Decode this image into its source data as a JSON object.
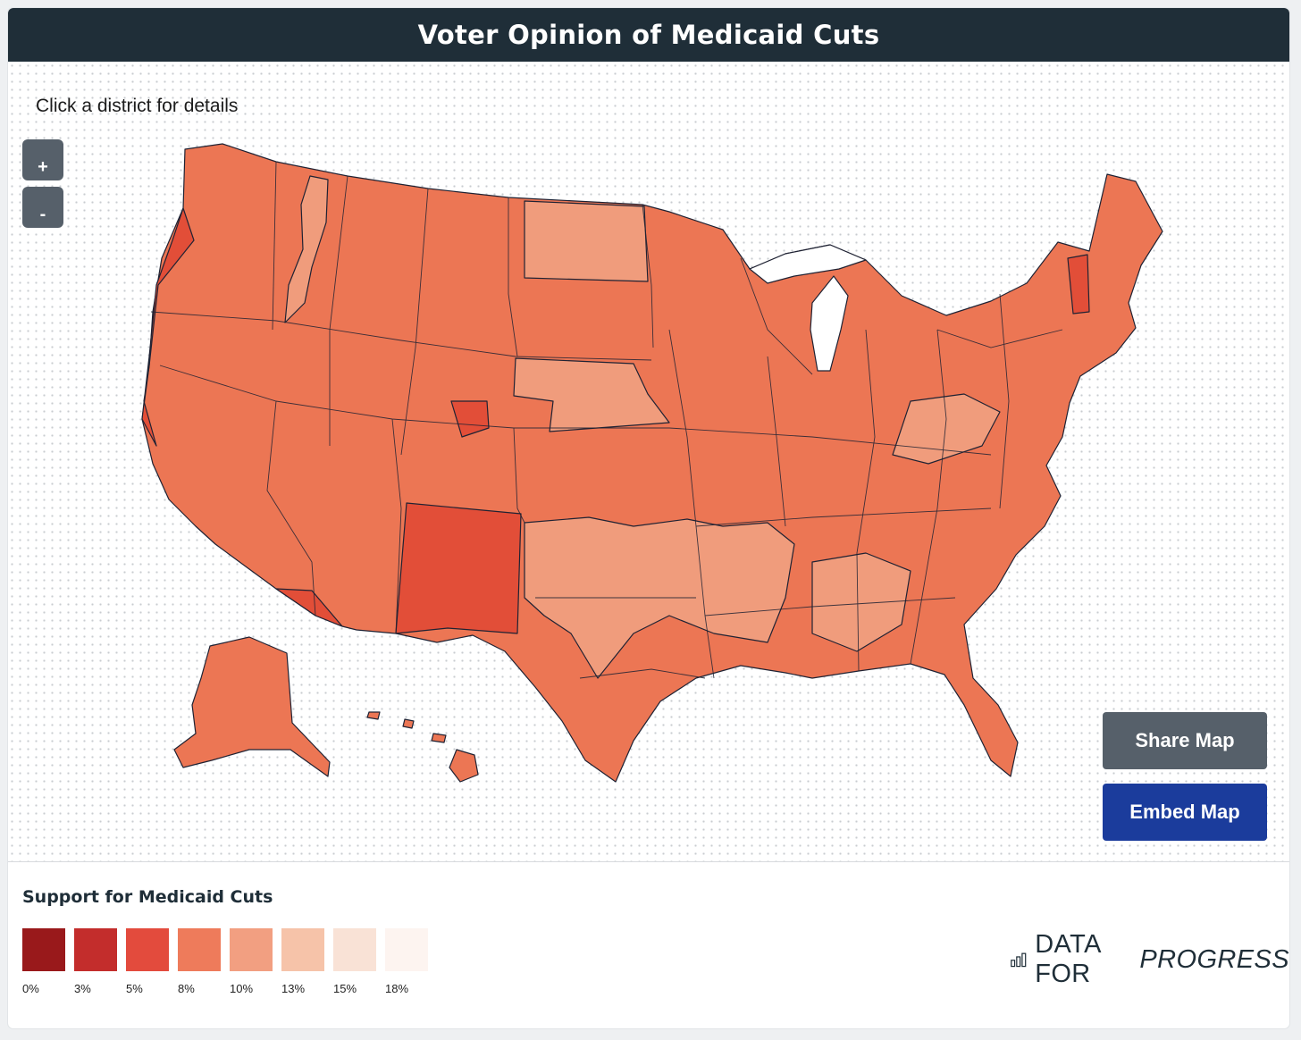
{
  "header": {
    "title": "Voter Opinion of Medicaid Cuts"
  },
  "map": {
    "hint": "Click a district for details",
    "zoom_in_label": "+",
    "zoom_out_label": "-",
    "region_colors": {
      "base": "#ec7654",
      "light": "#f09c7c",
      "dark": "#e24e38",
      "outline": "#1f2233"
    }
  },
  "actions": {
    "share_label": "Share Map",
    "embed_label": "Embed Map"
  },
  "legend": {
    "title": "Support for Medicaid Cuts",
    "items": [
      {
        "label": "0%",
        "color": "#99191b"
      },
      {
        "label": "3%",
        "color": "#c32d2c"
      },
      {
        "label": "5%",
        "color": "#e34b3d"
      },
      {
        "label": "8%",
        "color": "#ee7b5b"
      },
      {
        "label": "10%",
        "color": "#f29f81"
      },
      {
        "label": "13%",
        "color": "#f6c3a9"
      },
      {
        "label": "15%",
        "color": "#f9e2d6"
      },
      {
        "label": "18%",
        "color": "#fdf4f0"
      }
    ]
  },
  "brand": {
    "part1": "DATA FOR",
    "part2": "PROGRESS",
    "icon": "bar-chart-icon"
  }
}
